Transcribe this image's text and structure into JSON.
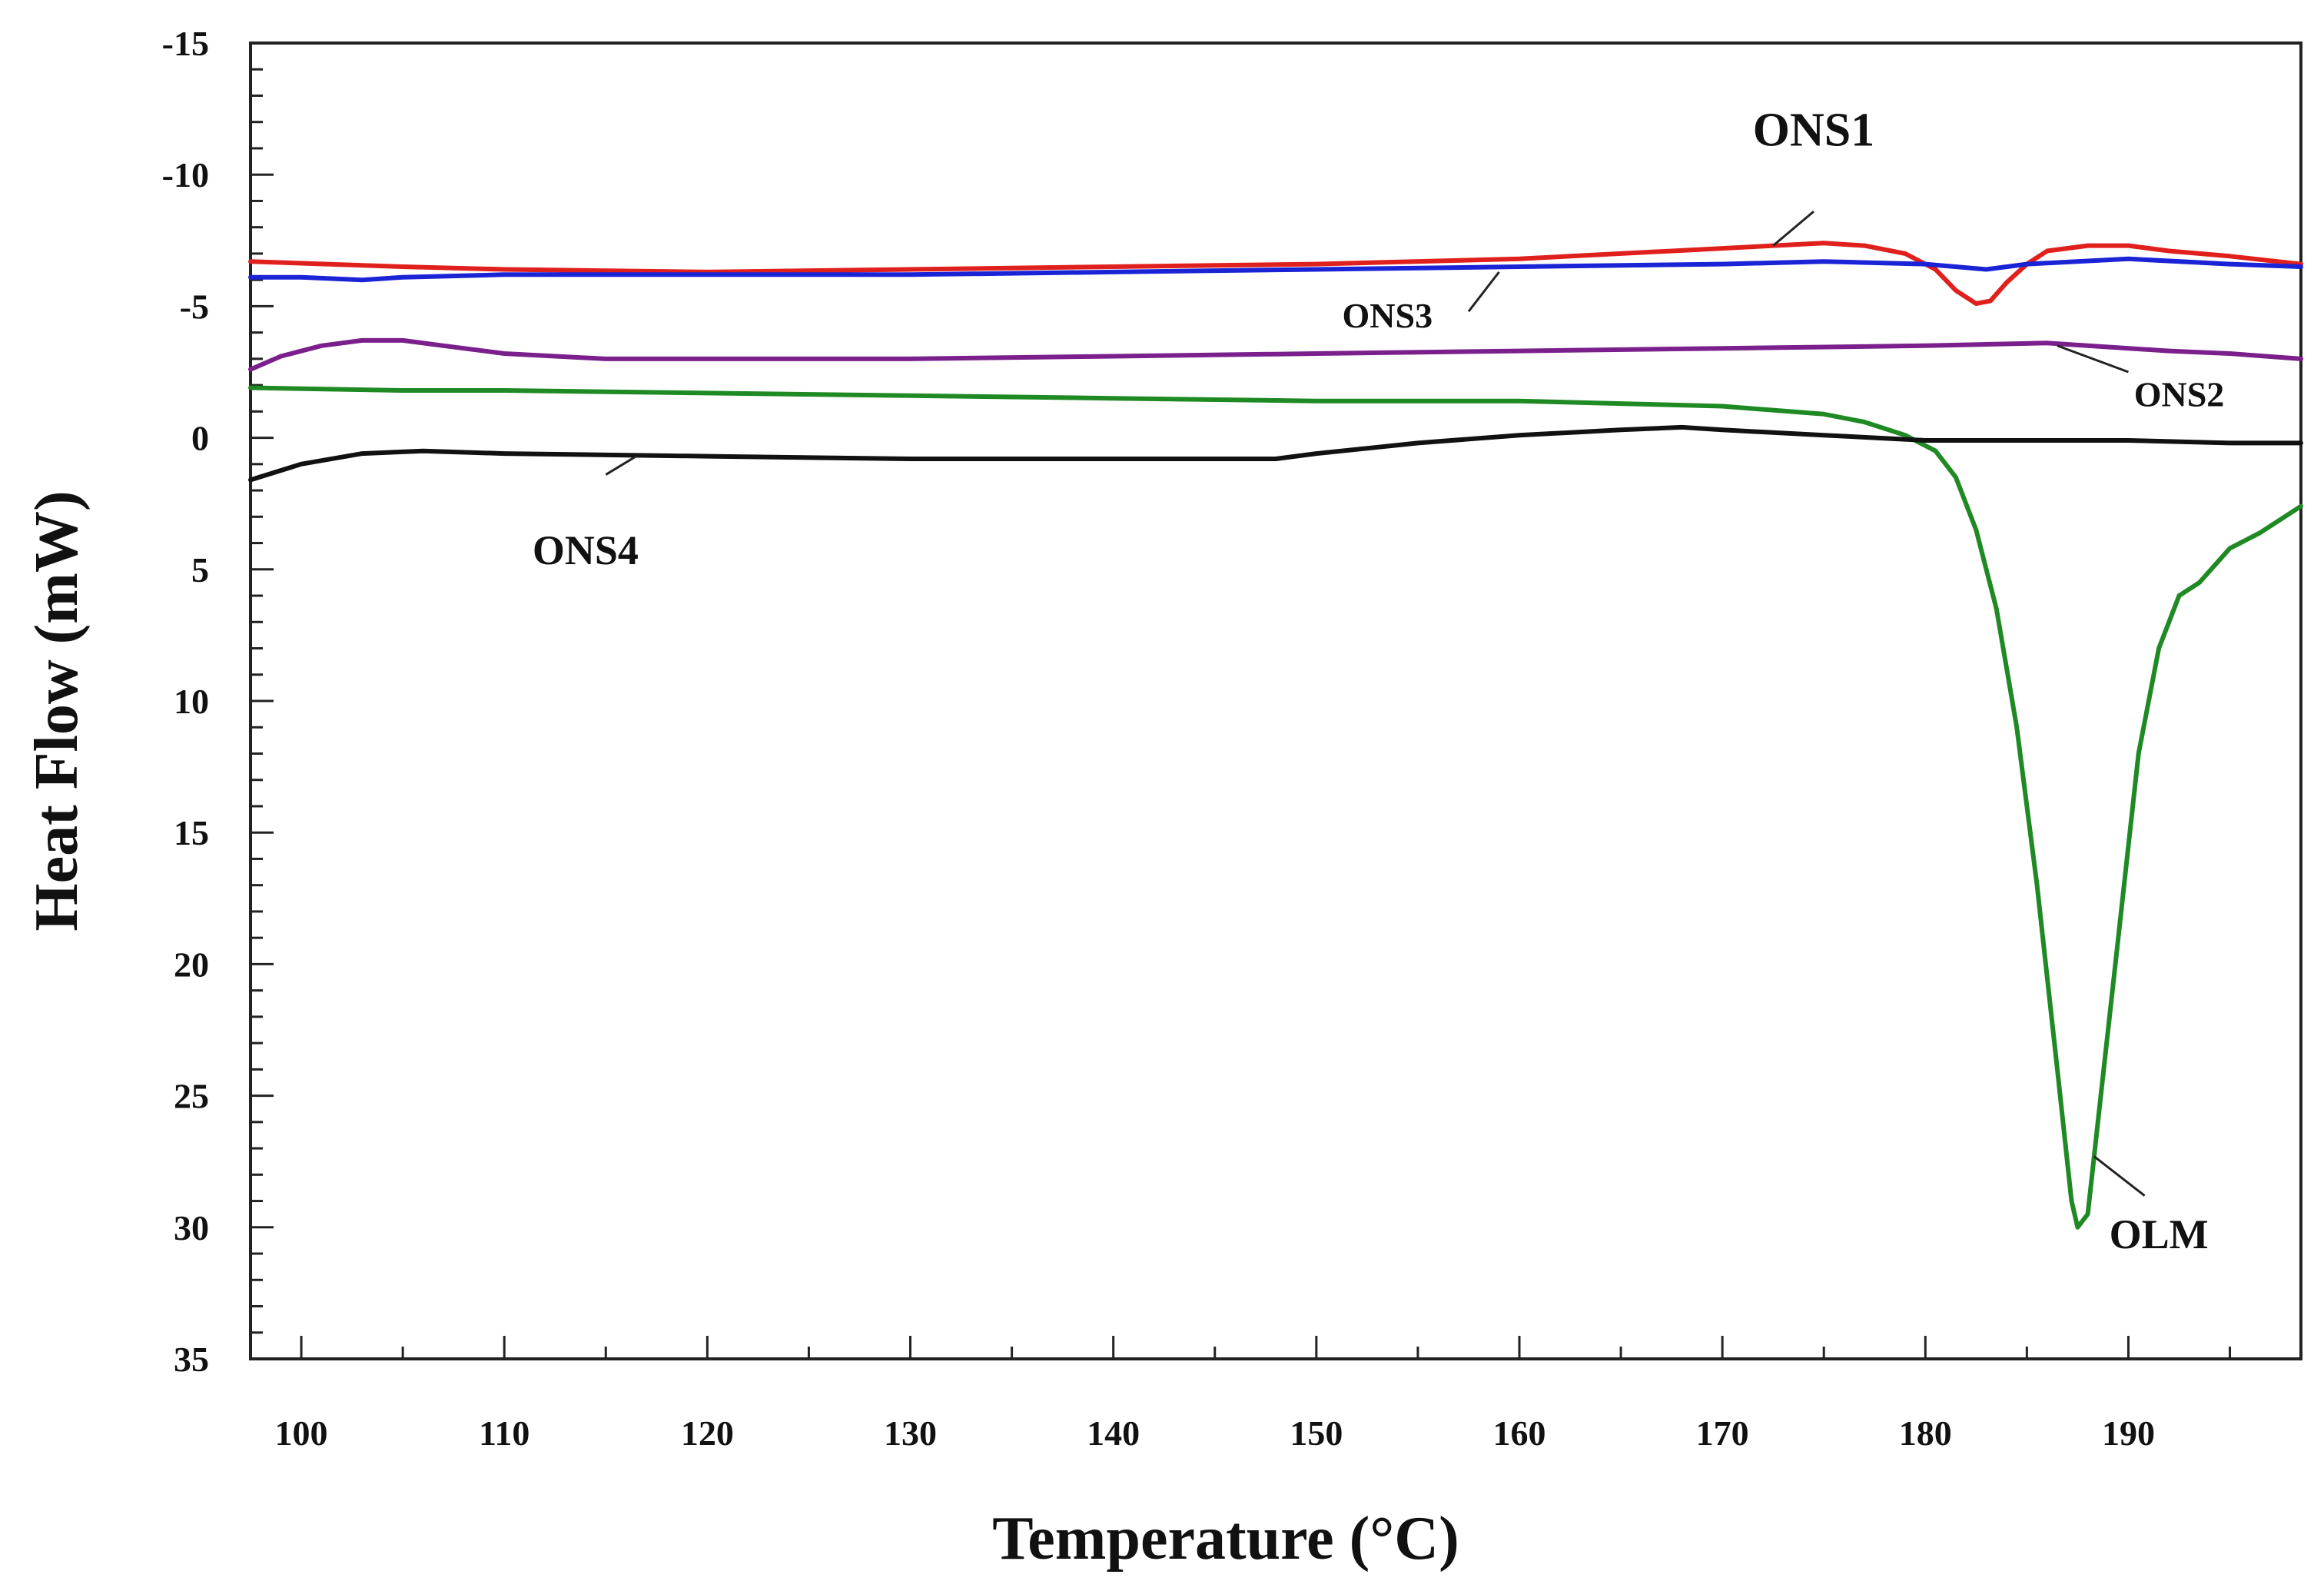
{
  "chart_data": {
    "type": "line",
    "title": "",
    "xlabel": "Temperature (°C)",
    "ylabel": "Heat Flow (mW)",
    "xlim": [
      97.5,
      198.5
    ],
    "ylim": [
      -15,
      35
    ],
    "y_inverted": true,
    "x_ticks": [
      100,
      110,
      120,
      130,
      140,
      150,
      160,
      170,
      180,
      190
    ],
    "x_tick_labels": [
      "100",
      "110",
      "120",
      "130",
      "140",
      "150",
      "160",
      "170",
      "180",
      "190"
    ],
    "y_ticks": [
      -15,
      -10,
      -5,
      0,
      5,
      10,
      15,
      20,
      25,
      30,
      35
    ],
    "y_tick_labels": [
      "-15",
      "-10",
      "-5",
      "0",
      "5",
      "10",
      "15",
      "20",
      "25",
      "30",
      "35"
    ],
    "grid": false,
    "series": [
      {
        "name": "ONS1",
        "color": "#e0201c",
        "points": [
          [
            97.5,
            -6.7
          ],
          [
            105,
            -6.5
          ],
          [
            110,
            -6.4
          ],
          [
            120,
            -6.3
          ],
          [
            130,
            -6.4
          ],
          [
            140,
            -6.5
          ],
          [
            150,
            -6.6
          ],
          [
            160,
            -6.8
          ],
          [
            165,
            -7.0
          ],
          [
            170,
            -7.2
          ],
          [
            175,
            -7.4
          ],
          [
            177,
            -7.3
          ],
          [
            179,
            -7.0
          ],
          [
            180.5,
            -6.4
          ],
          [
            181.5,
            -5.6
          ],
          [
            182.5,
            -5.1
          ],
          [
            183.2,
            -5.2
          ],
          [
            184,
            -5.9
          ],
          [
            185,
            -6.6
          ],
          [
            186,
            -7.1
          ],
          [
            188,
            -7.3
          ],
          [
            190,
            -7.3
          ],
          [
            192,
            -7.1
          ],
          [
            195,
            -6.9
          ],
          [
            198.5,
            -6.6
          ]
        ]
      },
      {
        "name": "ONS3",
        "color": "#1a23d6",
        "points": [
          [
            97.5,
            -6.1
          ],
          [
            100,
            -6.1
          ],
          [
            103,
            -6.0
          ],
          [
            105,
            -6.1
          ],
          [
            110,
            -6.2
          ],
          [
            120,
            -6.2
          ],
          [
            130,
            -6.2
          ],
          [
            140,
            -6.3
          ],
          [
            150,
            -6.4
          ],
          [
            160,
            -6.5
          ],
          [
            170,
            -6.6
          ],
          [
            175,
            -6.7
          ],
          [
            180,
            -6.6
          ],
          [
            183,
            -6.4
          ],
          [
            185,
            -6.6
          ],
          [
            190,
            -6.8
          ],
          [
            195,
            -6.6
          ],
          [
            198.5,
            -6.5
          ]
        ]
      },
      {
        "name": "ONS2",
        "color": "#7a1f8c",
        "points": [
          [
            97.5,
            -2.6
          ],
          [
            99,
            -3.1
          ],
          [
            101,
            -3.5
          ],
          [
            103,
            -3.7
          ],
          [
            105,
            -3.7
          ],
          [
            107,
            -3.5
          ],
          [
            110,
            -3.2
          ],
          [
            115,
            -3.0
          ],
          [
            120,
            -3.0
          ],
          [
            130,
            -3.0
          ],
          [
            140,
            -3.1
          ],
          [
            150,
            -3.2
          ],
          [
            160,
            -3.3
          ],
          [
            170,
            -3.4
          ],
          [
            180,
            -3.5
          ],
          [
            186,
            -3.6
          ],
          [
            188,
            -3.5
          ],
          [
            192,
            -3.3
          ],
          [
            195,
            -3.2
          ],
          [
            198.5,
            -3.0
          ]
        ]
      },
      {
        "name": "OLM",
        "color": "#1f8a24",
        "points": [
          [
            97.5,
            -1.9
          ],
          [
            105,
            -1.8
          ],
          [
            110,
            -1.8
          ],
          [
            120,
            -1.7
          ],
          [
            130,
            -1.6
          ],
          [
            140,
            -1.5
          ],
          [
            150,
            -1.4
          ],
          [
            160,
            -1.4
          ],
          [
            165,
            -1.3
          ],
          [
            170,
            -1.2
          ],
          [
            175,
            -0.9
          ],
          [
            177,
            -0.6
          ],
          [
            179,
            -0.1
          ],
          [
            180.5,
            0.5
          ],
          [
            181.5,
            1.5
          ],
          [
            182.5,
            3.5
          ],
          [
            183.5,
            6.5
          ],
          [
            184.5,
            11
          ],
          [
            185.5,
            17
          ],
          [
            186.5,
            24
          ],
          [
            187.2,
            29
          ],
          [
            187.5,
            30
          ],
          [
            188,
            29.5
          ],
          [
            188.5,
            26
          ],
          [
            189.5,
            19
          ],
          [
            190.5,
            12
          ],
          [
            191.5,
            8
          ],
          [
            192.5,
            6
          ],
          [
            193.5,
            5.5
          ],
          [
            195,
            4.2
          ],
          [
            196.5,
            3.6
          ],
          [
            198.5,
            2.6
          ]
        ]
      },
      {
        "name": "ONS4",
        "color": "#111111",
        "points": [
          [
            97.5,
            1.6
          ],
          [
            100,
            1.0
          ],
          [
            103,
            0.6
          ],
          [
            106,
            0.5
          ],
          [
            110,
            0.6
          ],
          [
            120,
            0.7
          ],
          [
            130,
            0.8
          ],
          [
            135,
            0.8
          ],
          [
            140,
            0.8
          ],
          [
            145,
            0.8
          ],
          [
            148,
            0.8
          ],
          [
            150,
            0.6
          ],
          [
            155,
            0.2
          ],
          [
            160,
            -0.1
          ],
          [
            165,
            -0.3
          ],
          [
            168,
            -0.4
          ],
          [
            170,
            -0.3
          ],
          [
            175,
            -0.1
          ],
          [
            180,
            0.1
          ],
          [
            185,
            0.1
          ],
          [
            190,
            0.1
          ],
          [
            195,
            0.2
          ],
          [
            198.5,
            0.2
          ]
        ]
      }
    ],
    "annotations": [
      {
        "text": "ONS1",
        "series": "ONS1",
        "text_x": 174.5,
        "text_y": -11.1,
        "leader": [
          [
            172.5,
            -7.3
          ],
          [
            174.5,
            -8.6
          ]
        ]
      },
      {
        "text": "ONS3",
        "series": "ONS3",
        "text_x": 153.5,
        "text_y": -4.2,
        "leader": [
          [
            157.5,
            -4.8
          ],
          [
            159,
            -6.3
          ]
        ]
      },
      {
        "text": "ONS2",
        "series": "ONS2",
        "text_x": 192.5,
        "text_y": -1.2,
        "leader": [
          [
            186.5,
            -3.5
          ],
          [
            190,
            -2.5
          ]
        ]
      },
      {
        "text": "OLM",
        "series": "OLM",
        "text_x": 191.5,
        "text_y": 30.8,
        "leader": [
          [
            188.3,
            27.3
          ],
          [
            190.8,
            28.8
          ]
        ]
      },
      {
        "text": "ONS4",
        "series": "ONS4",
        "text_x": 114,
        "text_y": 4.8,
        "leader": [
          [
            115,
            1.4
          ],
          [
            116.5,
            0.7
          ]
        ]
      }
    ]
  }
}
